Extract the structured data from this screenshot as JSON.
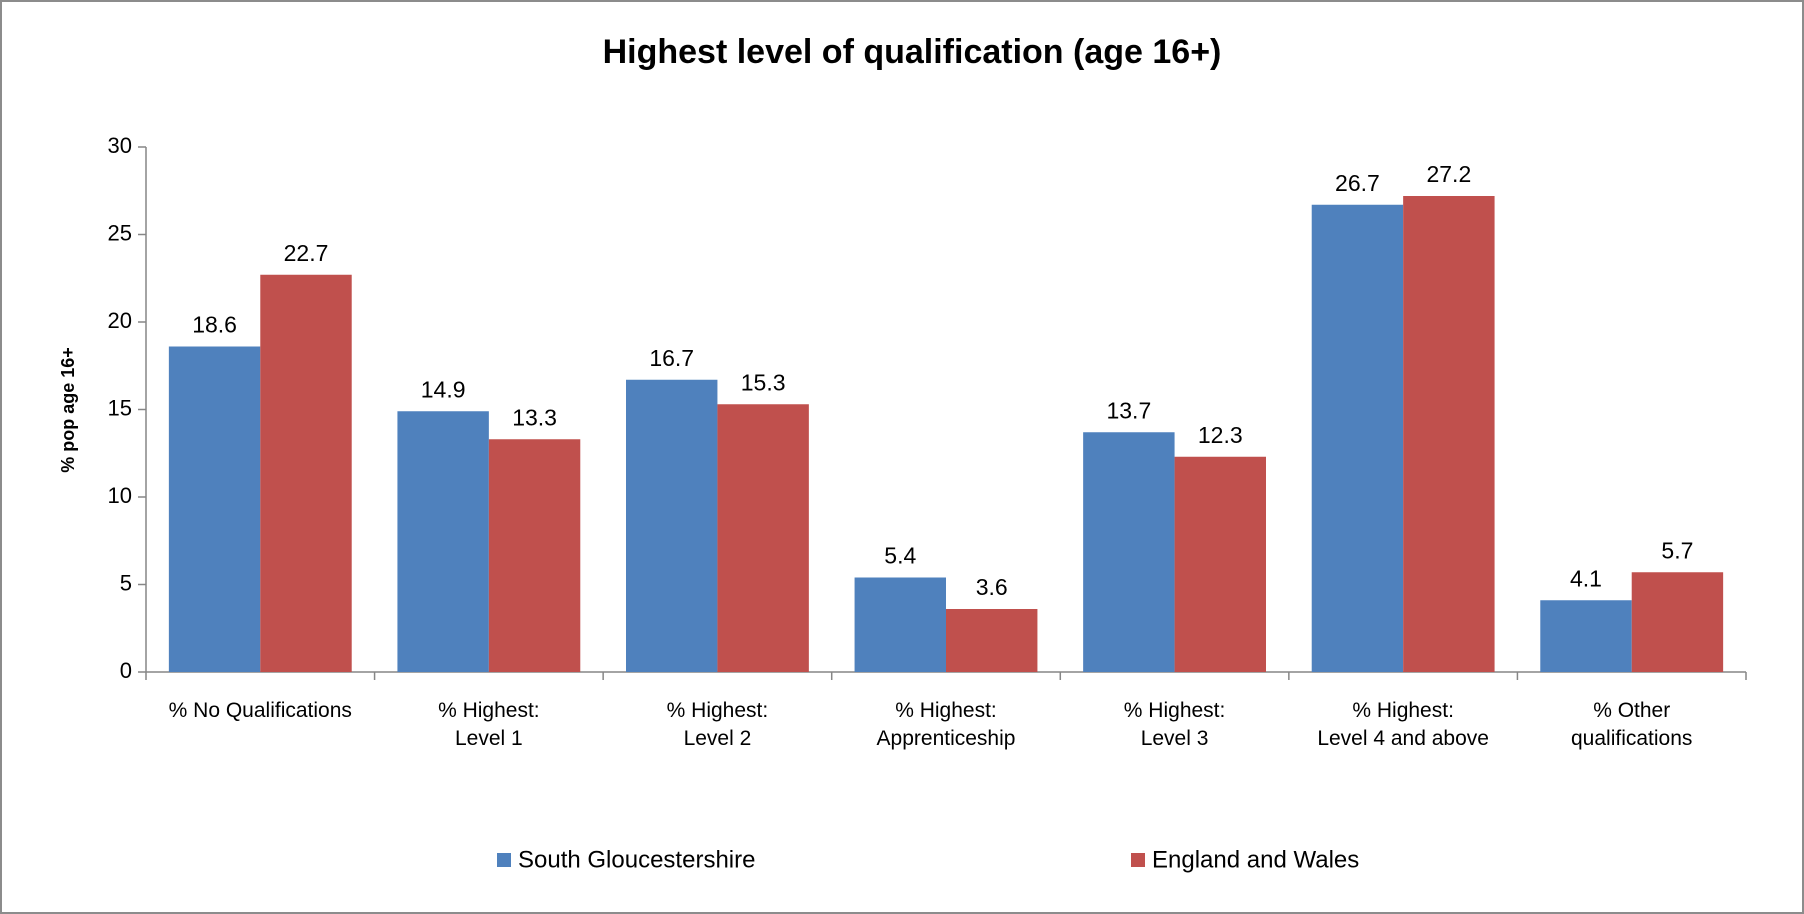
{
  "chart_data": {
    "type": "bar",
    "title": "Highest level of qualification (age 16+)",
    "y_label": "% pop age 16+",
    "categories": [
      "% No Qualifications",
      "% Highest:\nLevel 1",
      "% Highest:\nLevel 2",
      "% Highest:\nApprenticeship",
      "% Highest:\nLevel 3",
      "% Highest:\nLevel 4 and above",
      "% Other\nqualifications"
    ],
    "series": [
      {
        "name": "South Gloucestershire",
        "color": "#4f81bd",
        "values": [
          18.6,
          14.9,
          16.7,
          5.4,
          13.7,
          26.7,
          4.1
        ]
      },
      {
        "name": "England and Wales",
        "color": "#c0504d",
        "values": [
          22.7,
          13.3,
          15.3,
          3.6,
          12.3,
          27.2,
          5.7
        ]
      }
    ],
    "ylim": [
      0,
      30
    ],
    "yticks": [
      0,
      5,
      10,
      15,
      20,
      25,
      30
    ],
    "legend": "bottom"
  }
}
